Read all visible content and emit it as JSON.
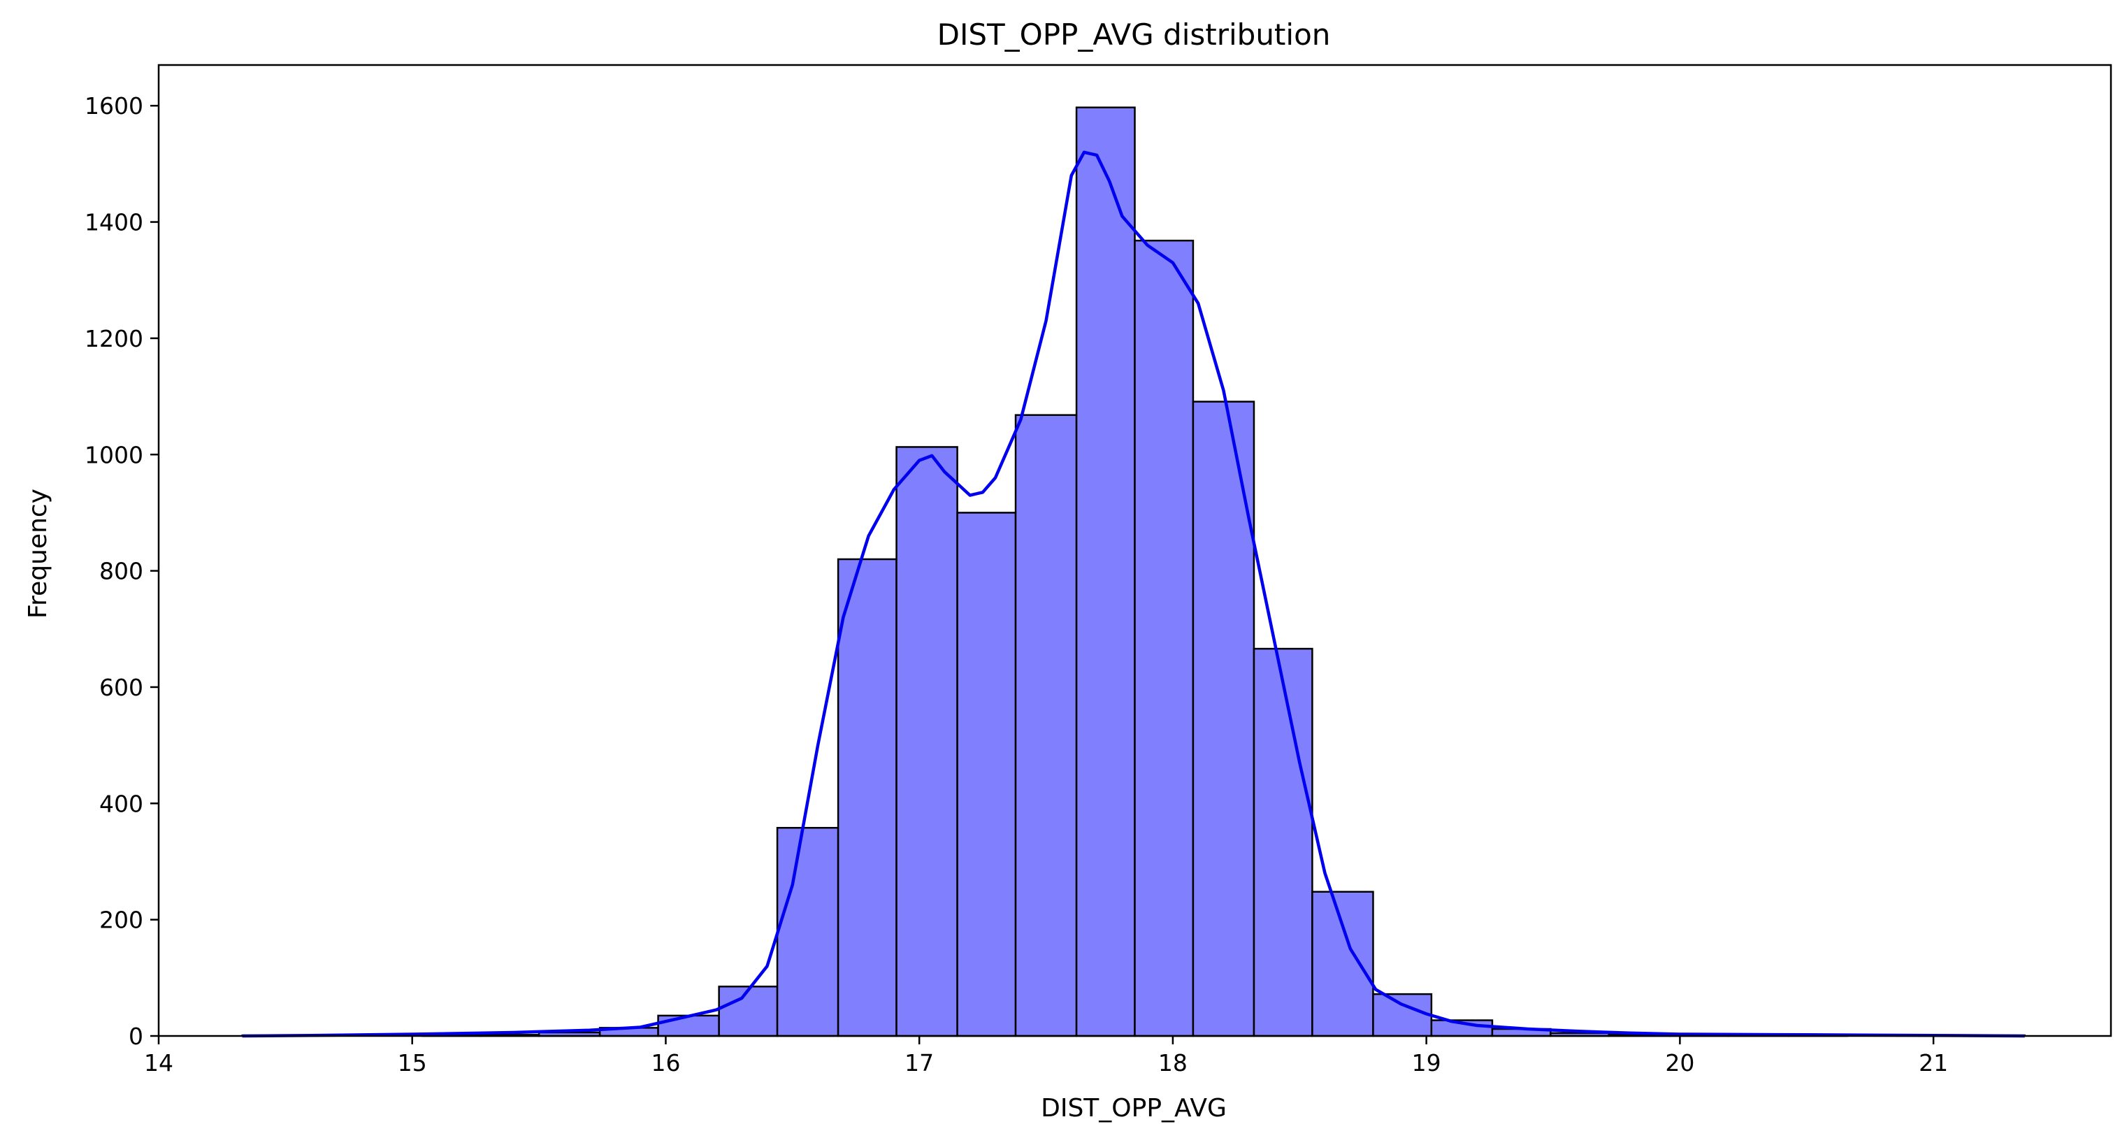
{
  "chart_data": {
    "type": "bar",
    "title": "DIST_OPP_AVG distribution",
    "xlabel": "DIST_OPP_AVG",
    "ylabel": "Frequency",
    "xlim": [
      14.0,
      21.7
    ],
    "ylim": [
      0,
      1670
    ],
    "xticks": [
      14,
      15,
      16,
      17,
      18,
      19,
      20,
      21
    ],
    "yticks": [
      0,
      200,
      400,
      600,
      800,
      1000,
      1200,
      1400,
      1600
    ],
    "bin_edges": [
      14.33,
      14.57,
      14.8,
      15.04,
      15.27,
      15.5,
      15.74,
      15.97,
      16.21,
      16.44,
      16.68,
      16.91,
      17.15,
      17.38,
      17.62,
      17.85,
      18.08,
      18.32,
      18.55,
      18.79,
      19.02,
      19.26,
      19.49,
      19.72,
      19.96,
      20.19,
      20.43,
      20.66,
      20.89,
      21.13,
      21.36
    ],
    "counts": [
      1,
      0,
      0,
      1,
      2,
      6,
      14,
      35,
      85,
      358,
      820,
      1013,
      900,
      1068,
      1597,
      1368,
      1091,
      666,
      248,
      72,
      27,
      12,
      5,
      2,
      2,
      1,
      1,
      0,
      0,
      1
    ],
    "kde_x": [
      14.33,
      14.6,
      15.0,
      15.4,
      15.7,
      15.9,
      16.0,
      16.1,
      16.2,
      16.3,
      16.4,
      16.5,
      16.6,
      16.7,
      16.8,
      16.9,
      17.0,
      17.05,
      17.1,
      17.2,
      17.25,
      17.3,
      17.4,
      17.5,
      17.6,
      17.65,
      17.7,
      17.75,
      17.8,
      17.9,
      18.0,
      18.1,
      18.2,
      18.3,
      18.4,
      18.5,
      18.6,
      18.7,
      18.8,
      18.9,
      19.0,
      19.1,
      19.2,
      19.4,
      19.6,
      19.8,
      20.0,
      20.5,
      21.0,
      21.36
    ],
    "kde_y": [
      0,
      1,
      3,
      6,
      10,
      15,
      25,
      35,
      45,
      65,
      120,
      260,
      500,
      720,
      860,
      940,
      990,
      998,
      970,
      930,
      935,
      960,
      1060,
      1230,
      1480,
      1520,
      1515,
      1470,
      1410,
      1360,
      1330,
      1260,
      1110,
      890,
      680,
      470,
      280,
      150,
      80,
      55,
      38,
      25,
      18,
      12,
      8,
      5,
      3,
      2,
      1,
      0
    ],
    "bar_color": "#8080ff",
    "bar_edge_color": "#000000",
    "kde_color": "#0000ee",
    "grid": false,
    "legend": "none"
  }
}
